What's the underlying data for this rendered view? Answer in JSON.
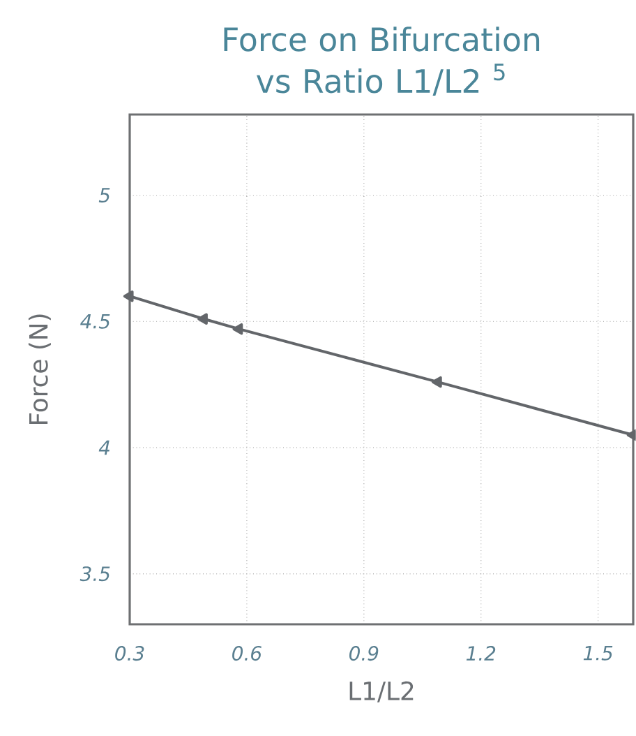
{
  "chart_data": {
    "type": "line",
    "title": "Force on Bifurcation vs Ratio L1/L2 $^{5}$",
    "xlabel": "L1/L2",
    "ylabel": "Force (N)",
    "x": [
      0.3,
      0.49,
      0.58,
      1.09,
      1.59
    ],
    "series": [
      {
        "color": "#63666a",
        "values": [
          4.6,
          4.51,
          4.47,
          4.26,
          4.05
        ]
      }
    ],
    "xlim": [
      0.3,
      1.59
    ],
    "ylim": [
      3.3,
      5.32
    ],
    "xticks": [
      0.3,
      0.6,
      0.9,
      1.2,
      1.5
    ],
    "yticks": [
      3.5,
      4,
      4.5,
      5
    ],
    "grid": true,
    "marker": "triangle",
    "line_style": "solid"
  }
}
